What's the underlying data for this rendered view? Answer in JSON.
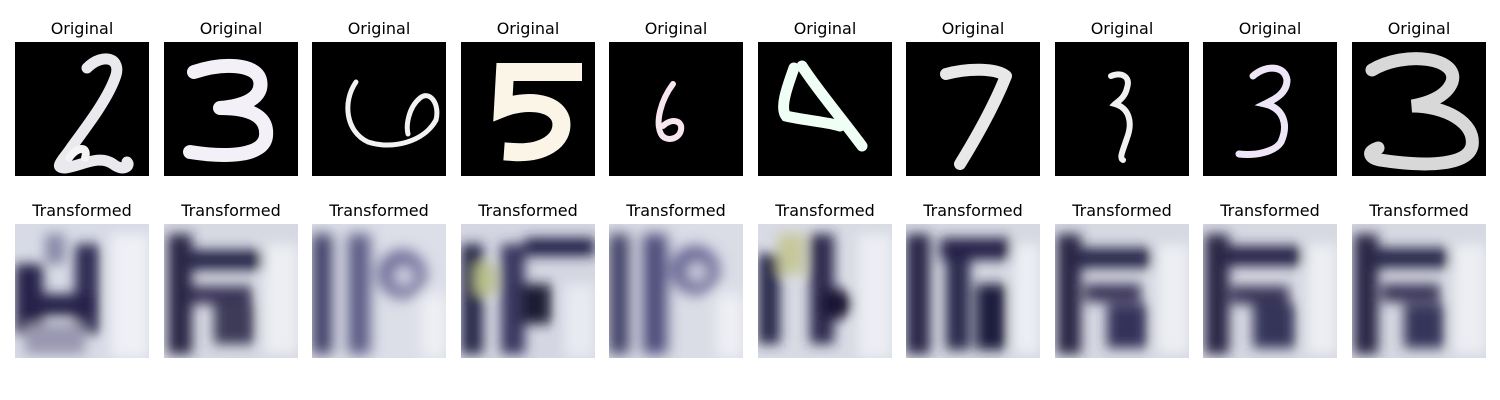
{
  "figure": {
    "panel_titles": {
      "original": "Original",
      "transformed": "Transformed"
    },
    "columns": [
      {
        "digit": "2",
        "transformed_shape": "H-like blur"
      },
      {
        "digit": "3",
        "transformed_shape": "E-like blur"
      },
      {
        "digit": "6",
        "transformed_shape": "P-like blur"
      },
      {
        "digit": "5",
        "transformed_shape": "F-like blur"
      },
      {
        "digit": "6",
        "transformed_shape": "P-like blur"
      },
      {
        "digit": "4",
        "transformed_shape": "4-like blur"
      },
      {
        "digit": "7",
        "transformed_shape": "F-like blur"
      },
      {
        "digit": "3",
        "transformed_shape": "E-like blur"
      },
      {
        "digit": "3",
        "transformed_shape": "E-like blur"
      },
      {
        "digit": "3",
        "transformed_shape": "E-like blur"
      }
    ],
    "colors": {
      "original_background": "#000000",
      "original_stroke": "#f4f0f8",
      "transformed_background": "#dcdfe8",
      "transformed_dark": "#1e1c3c"
    }
  }
}
